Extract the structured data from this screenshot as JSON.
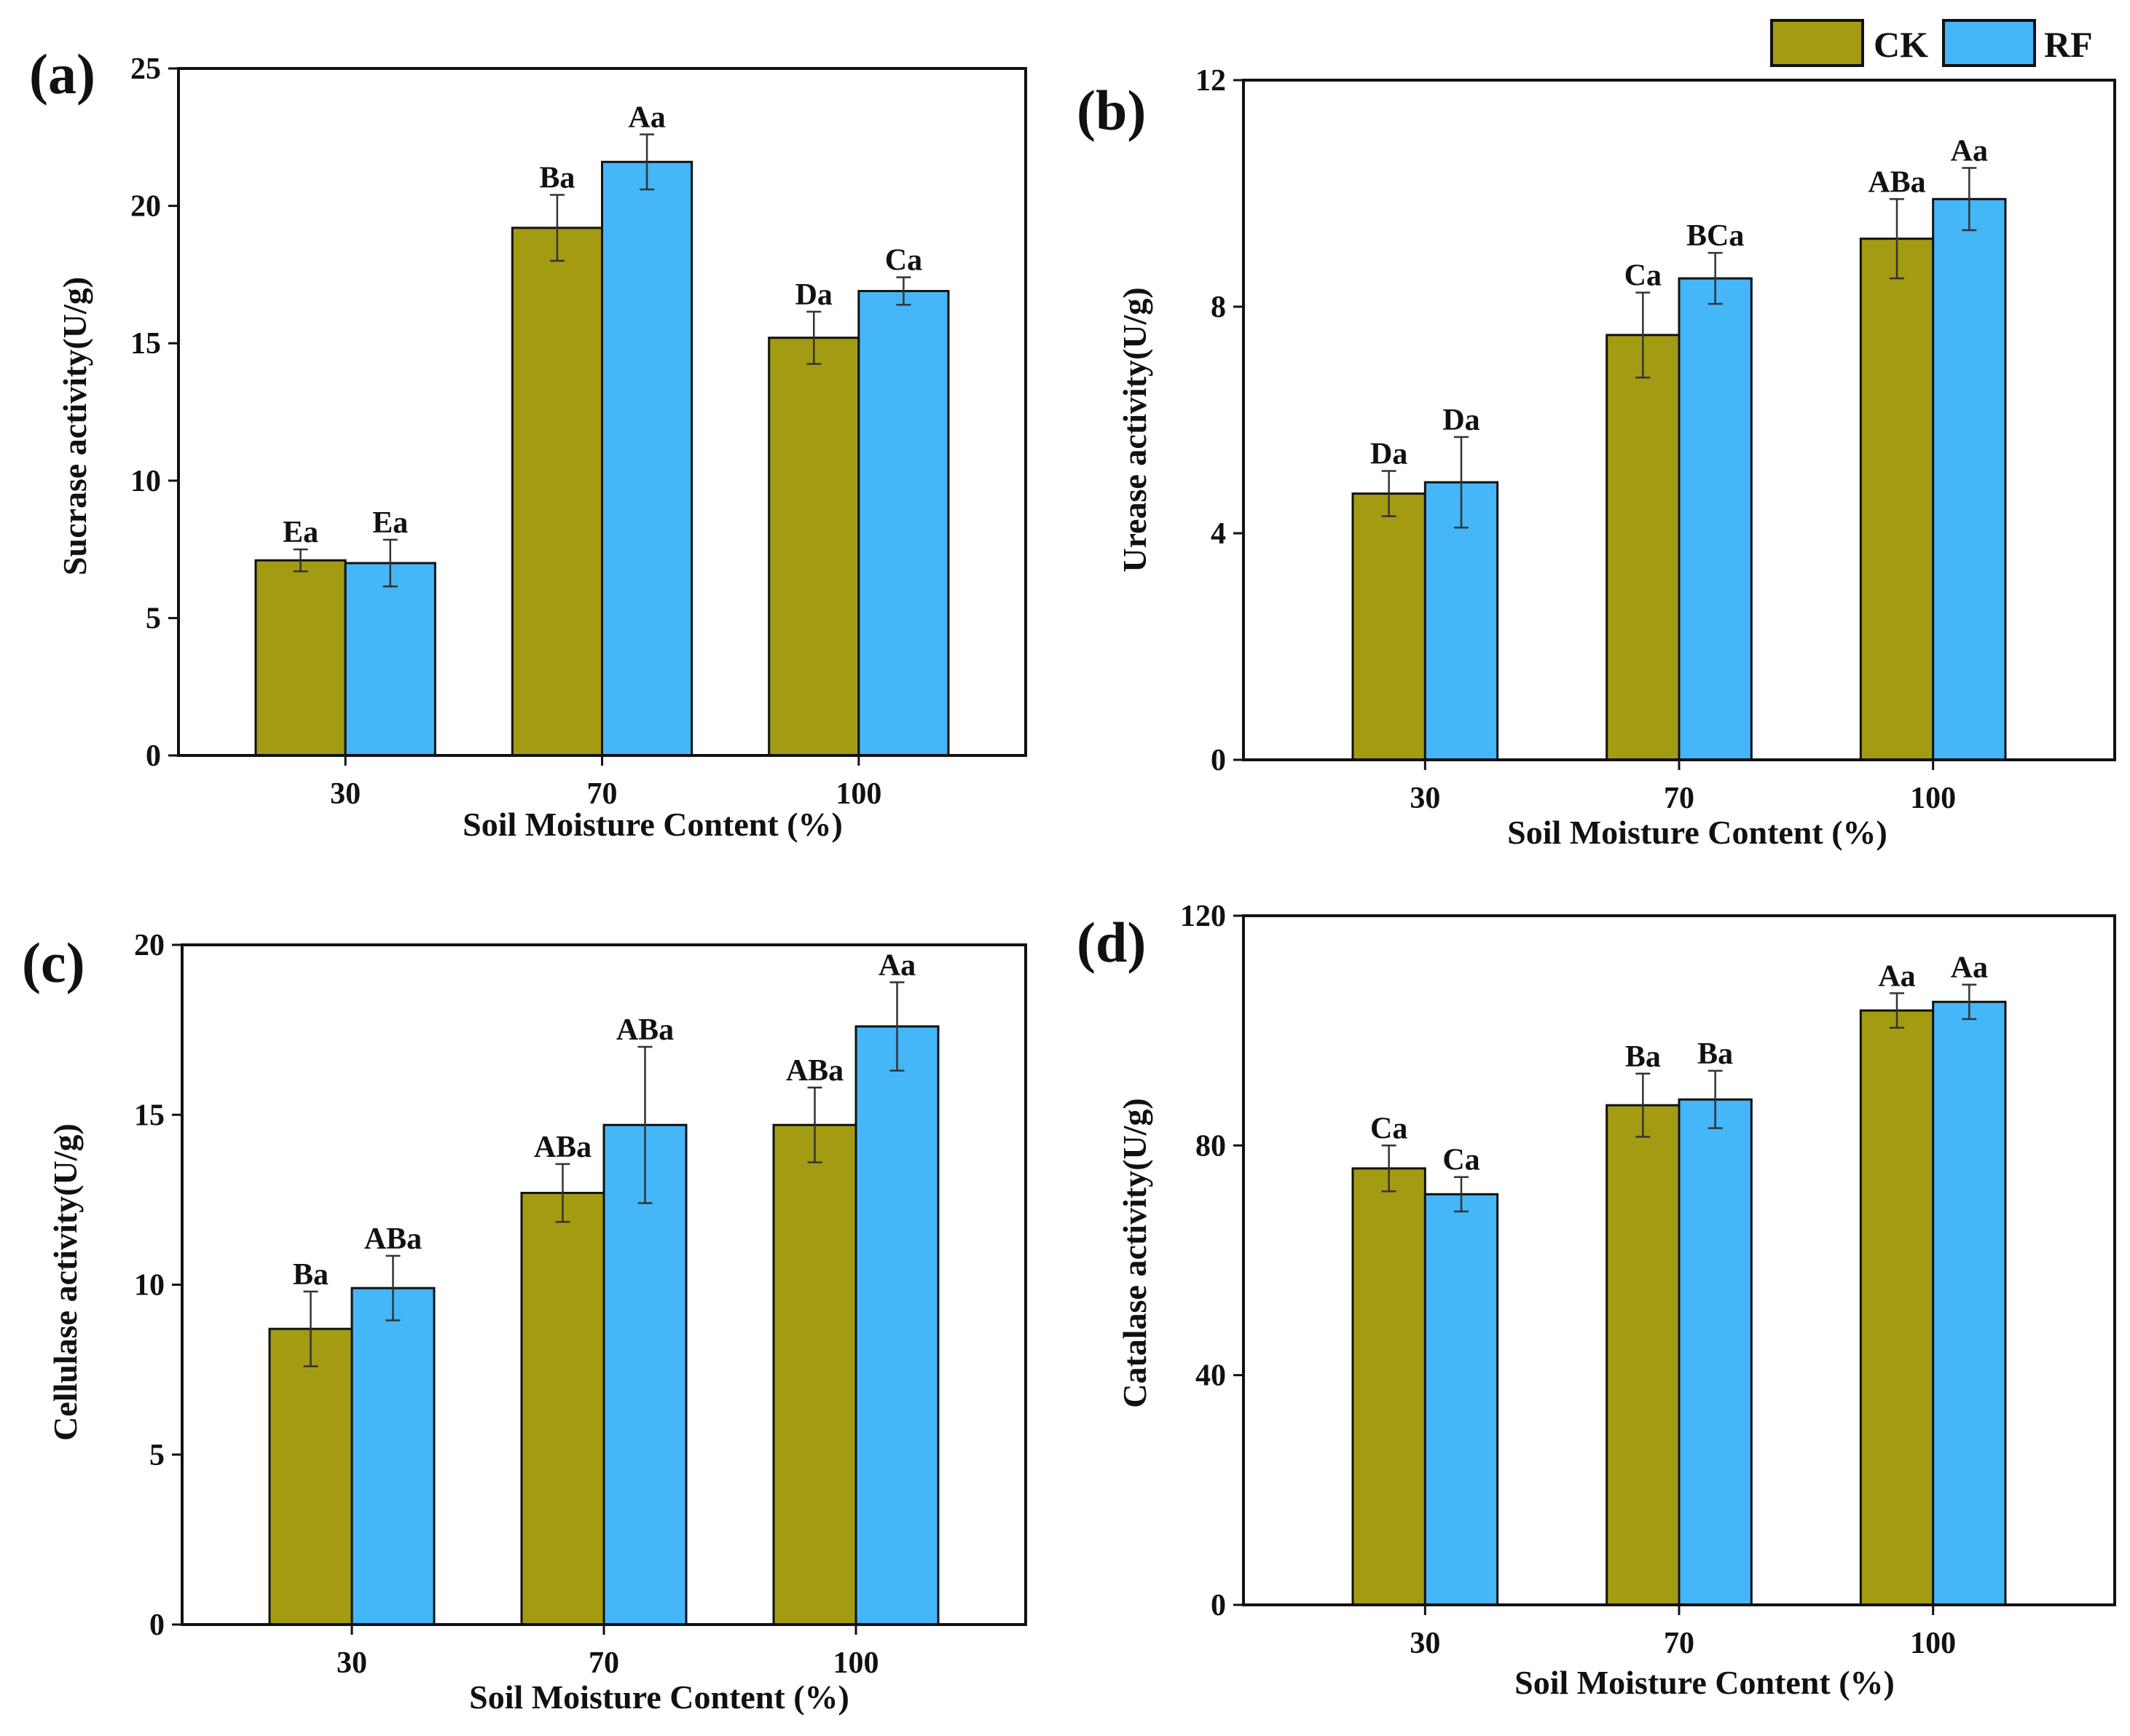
{
  "figure": {
    "legend": [
      {
        "name": "CK",
        "color": "#a39b12"
      },
      {
        "name": "RF",
        "color": "#45b6f7"
      }
    ]
  },
  "chart_data": [
    {
      "type": "bar",
      "panel": "(a)",
      "categories": [
        "30",
        "70",
        "100"
      ],
      "xlabel": "Soil Moisture Content (%)",
      "ylabel": "Sucrase activity(U/g)",
      "ylim": [
        0,
        25
      ],
      "yticks": [
        0,
        5,
        10,
        15,
        20,
        25
      ],
      "series": [
        {
          "name": "CK",
          "values": [
            7.1,
            19.2,
            15.2
          ],
          "errors": [
            0.4,
            1.2,
            0.95
          ],
          "labels": [
            "Ea",
            "Ba",
            "Da"
          ]
        },
        {
          "name": "RF",
          "values": [
            7.0,
            21.6,
            16.9
          ],
          "errors": [
            0.85,
            1.0,
            0.5
          ],
          "labels": [
            "Ea",
            "Aa",
            "Ca"
          ]
        }
      ]
    },
    {
      "type": "bar",
      "panel": "(b)",
      "categories": [
        "30",
        "70",
        "100"
      ],
      "xlabel": "Soil Moisture Content (%)",
      "ylabel": "Urease activity(U/g)",
      "ylim": [
        0,
        12
      ],
      "yticks": [
        0,
        4,
        8,
        12
      ],
      "series": [
        {
          "name": "CK",
          "values": [
            4.7,
            7.5,
            9.2
          ],
          "errors": [
            0.4,
            0.75,
            0.7
          ],
          "labels": [
            "Da",
            "Ca",
            "ABa"
          ]
        },
        {
          "name": "RF",
          "values": [
            4.9,
            8.5,
            9.9
          ],
          "errors": [
            0.8,
            0.45,
            0.55
          ],
          "labels": [
            "Da",
            "BCa",
            "Aa"
          ]
        }
      ]
    },
    {
      "type": "bar",
      "panel": "(c)",
      "categories": [
        "30",
        "70",
        "100"
      ],
      "xlabel": "Soil Moisture Content (%)",
      "ylabel": "Cellulase activity(U/g)",
      "ylim": [
        0,
        20
      ],
      "yticks": [
        0,
        5,
        10,
        15,
        20
      ],
      "series": [
        {
          "name": "CK",
          "values": [
            8.7,
            12.7,
            14.7
          ],
          "errors": [
            1.1,
            0.85,
            1.1
          ],
          "labels": [
            "Ba",
            "ABa",
            "ABa"
          ]
        },
        {
          "name": "RF",
          "values": [
            9.9,
            14.7,
            17.6
          ],
          "errors": [
            0.95,
            2.3,
            1.3
          ],
          "labels": [
            "ABa",
            "ABa",
            "Aa"
          ]
        }
      ]
    },
    {
      "type": "bar",
      "panel": "(d)",
      "categories": [
        "30",
        "70",
        "100"
      ],
      "xlabel": "Soil Moisture Content (%)",
      "ylabel": "Catalase activity(U/g)",
      "ylim": [
        0,
        120
      ],
      "yticks": [
        0,
        40,
        80,
        120
      ],
      "series": [
        {
          "name": "CK",
          "values": [
            76,
            87,
            103.5
          ],
          "errors": [
            4,
            5.5,
            3
          ],
          "labels": [
            "Ca",
            "Ba",
            "Aa"
          ]
        },
        {
          "name": "RF",
          "values": [
            71.5,
            88,
            105
          ],
          "errors": [
            3,
            5,
            3
          ],
          "labels": [
            "Ca",
            "Ba",
            "Aa"
          ]
        }
      ]
    }
  ]
}
